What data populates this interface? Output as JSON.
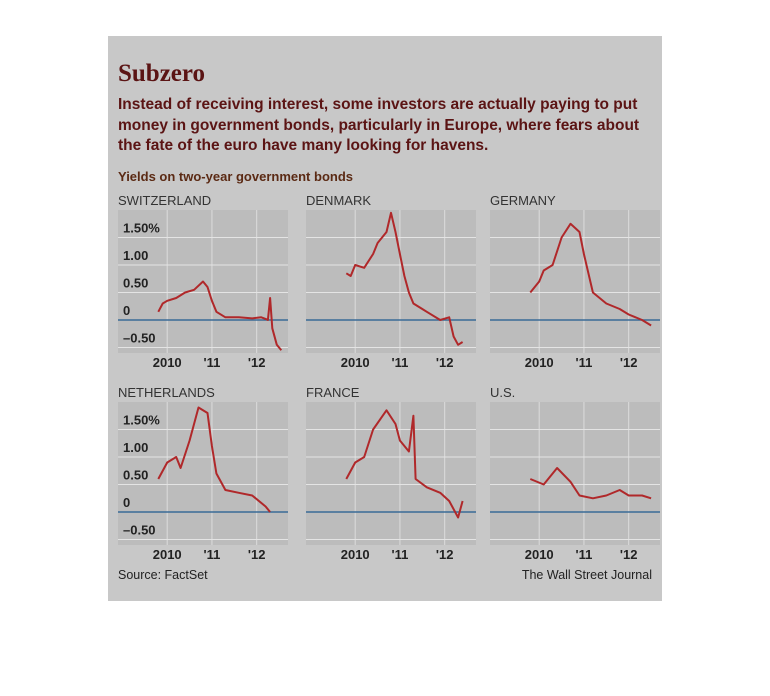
{
  "title": "Subzero",
  "subtitle": "Instead of receiving interest, some investors are actually paying to put money in government bonds, particularly in Europe, where fears about the fate of the euro have many looking for havens.",
  "y_label": "Yields on two-year government bonds",
  "source": "Source: FactSet",
  "credit": "The Wall Street Journal",
  "chart_data": [
    {
      "type": "line",
      "title": "SWITZERLAND",
      "color": "#b0282a",
      "x": [
        2009.8,
        2009.9,
        2010.0,
        2010.2,
        2010.4,
        2010.6,
        2010.8,
        2010.9,
        2011.0,
        2011.1,
        2011.3,
        2011.6,
        2011.9,
        2012.1,
        2012.2,
        2012.25,
        2012.3,
        2012.35,
        2012.45,
        2012.55
      ],
      "values": [
        0.15,
        0.3,
        0.35,
        0.4,
        0.5,
        0.55,
        0.7,
        0.6,
        0.35,
        0.15,
        0.05,
        0.05,
        0.03,
        0.05,
        0.02,
        0.0,
        0.4,
        -0.15,
        -0.45,
        -0.55
      ],
      "xlim": [
        2008.9,
        2012.7
      ],
      "xticks": [
        {
          "value": 2010,
          "label": "2010"
        },
        {
          "value": 2011,
          "label": "'11"
        },
        {
          "value": 2012,
          "label": "'12"
        }
      ],
      "ylim": [
        -0.6,
        2.0
      ],
      "yticks": [
        {
          "value": 1.5,
          "label": "1.50%"
        },
        {
          "value": 1,
          "label": "1.00"
        },
        {
          "value": 0.5,
          "label": "0.50"
        },
        0,
        {
          "value": -0.5,
          "label": "–0.50"
        }
      ]
    },
    {
      "type": "line",
      "title": "DENMARK",
      "color": "#b0282a",
      "x": [
        2009.8,
        2009.9,
        2010.0,
        2010.2,
        2010.4,
        2010.5,
        2010.7,
        2010.8,
        2010.9,
        2011.0,
        2011.1,
        2011.2,
        2011.3,
        2011.5,
        2011.6,
        2011.9,
        2012.1,
        2012.2,
        2012.3,
        2012.4
      ],
      "values": [
        0.85,
        0.8,
        1.0,
        0.95,
        1.2,
        1.4,
        1.6,
        1.95,
        1.6,
        1.2,
        0.8,
        0.5,
        0.3,
        0.2,
        0.15,
        0.0,
        0.05,
        -0.3,
        -0.45,
        -0.4
      ],
      "xlim": [
        2008.9,
        2012.7
      ],
      "xticks": [
        {
          "value": 2010,
          "label": "2010"
        },
        {
          "value": 2011,
          "label": "'11"
        },
        {
          "value": 2012,
          "label": "'12"
        }
      ],
      "ylim": [
        -0.6,
        2.0
      ],
      "yticks": [
        {
          "value": 1.5,
          "label": "1.50%"
        },
        {
          "value": 1,
          "label": "1.00"
        },
        {
          "value": 0.5,
          "label": "0.50"
        },
        0,
        {
          "value": -0.5,
          "label": "–0.50"
        }
      ]
    },
    {
      "type": "line",
      "title": "GERMANY",
      "color": "#b0282a",
      "x": [
        2009.8,
        2010.0,
        2010.1,
        2010.3,
        2010.5,
        2010.7,
        2010.9,
        2011.0,
        2011.2,
        2011.5,
        2011.8,
        2012.0,
        2012.3,
        2012.5
      ],
      "values": [
        0.5,
        0.7,
        0.9,
        1.0,
        1.5,
        1.75,
        1.6,
        1.2,
        0.5,
        0.3,
        0.2,
        0.1,
        0.0,
        -0.1
      ],
      "xlim": [
        2008.9,
        2012.7
      ],
      "xticks": [
        {
          "value": 2010,
          "label": "2010"
        },
        {
          "value": 2011,
          "label": "'11"
        },
        {
          "value": 2012,
          "label": "'12"
        }
      ],
      "ylim": [
        -0.6,
        2.0
      ],
      "yticks": [
        {
          "value": 1.5,
          "label": "1.50%"
        },
        {
          "value": 1,
          "label": "1.00"
        },
        {
          "value": 0.5,
          "label": "0.50"
        },
        0,
        {
          "value": -0.5,
          "label": "–0.50"
        }
      ]
    },
    {
      "type": "line",
      "title": "NETHERLANDS",
      "color": "#b0282a",
      "x": [
        2009.8,
        2010.0,
        2010.2,
        2010.3,
        2010.5,
        2010.7,
        2010.9,
        2011.0,
        2011.1,
        2011.3,
        2011.6,
        2011.9,
        2012.2,
        2012.3
      ],
      "values": [
        0.6,
        0.9,
        1.0,
        0.8,
        1.3,
        1.9,
        1.8,
        1.2,
        0.7,
        0.4,
        0.35,
        0.3,
        0.1,
        0.0
      ],
      "xlim": [
        2008.9,
        2012.7
      ],
      "xticks": [
        {
          "value": 2010,
          "label": "2010"
        },
        {
          "value": 2011,
          "label": "'11"
        },
        {
          "value": 2012,
          "label": "'12"
        }
      ],
      "ylim": [
        -0.6,
        2.0
      ],
      "yticks": [
        {
          "value": 1.5,
          "label": "1.50%"
        },
        {
          "value": 1,
          "label": "1.00"
        },
        {
          "value": 0.5,
          "label": "0.50"
        },
        0,
        {
          "value": -0.5,
          "label": "–0.50"
        }
      ]
    },
    {
      "type": "line",
      "title": "FRANCE",
      "color": "#b0282a",
      "x": [
        2009.8,
        2010.0,
        2010.2,
        2010.4,
        2010.7,
        2010.9,
        2011.0,
        2011.2,
        2011.3,
        2011.35,
        2011.6,
        2011.9,
        2012.1,
        2012.3,
        2012.4
      ],
      "values": [
        0.6,
        0.9,
        1.0,
        1.5,
        1.85,
        1.6,
        1.3,
        1.1,
        1.75,
        0.6,
        0.45,
        0.35,
        0.2,
        -0.1,
        0.2
      ],
      "xlim": [
        2008.9,
        2012.7
      ],
      "xticks": [
        {
          "value": 2010,
          "label": "2010"
        },
        {
          "value": 2011,
          "label": "'11"
        },
        {
          "value": 2012,
          "label": "'12"
        }
      ],
      "ylim": [
        -0.6,
        2.0
      ],
      "yticks": [
        {
          "value": 1.5,
          "label": "1.50%"
        },
        {
          "value": 1,
          "label": "1.00"
        },
        {
          "value": 0.5,
          "label": "0.50"
        },
        0,
        {
          "value": -0.5,
          "label": "–0.50"
        }
      ]
    },
    {
      "type": "line",
      "title": "U.S.",
      "color": "#b0282a",
      "x": [
        2009.8,
        2010.1,
        2010.4,
        2010.7,
        2010.9,
        2011.2,
        2011.5,
        2011.8,
        2012.0,
        2012.3,
        2012.5
      ],
      "values": [
        0.6,
        0.5,
        0.8,
        0.55,
        0.3,
        0.25,
        0.3,
        0.4,
        0.3,
        0.3,
        0.25
      ],
      "xlim": [
        2008.9,
        2012.7
      ],
      "xticks": [
        {
          "value": 2010,
          "label": "2010"
        },
        {
          "value": 2011,
          "label": "'11"
        },
        {
          "value": 2012,
          "label": "'12"
        }
      ],
      "ylim": [
        -0.6,
        2.0
      ],
      "yticks": [
        {
          "value": 1.5,
          "label": "1.50%"
        },
        {
          "value": 1,
          "label": "1.00"
        },
        {
          "value": 0.5,
          "label": "0.50"
        },
        0,
        {
          "value": -0.5,
          "label": "–0.50"
        }
      ]
    }
  ]
}
